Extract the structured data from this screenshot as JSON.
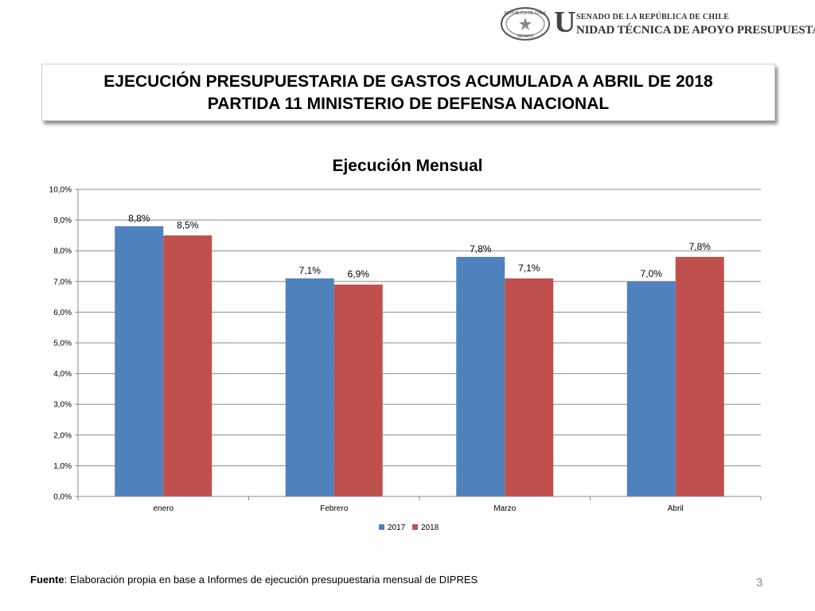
{
  "header": {
    "seal_text_top": "REPÚBLICA DE CHILE",
    "seal_text_bottom": "SENADO",
    "big_letter": "U",
    "senado_line": "SENADO DE LA REPÚBLICA DE CHILE",
    "unidad_line": "NIDAD TÉCNICA DE APOYO PRESUPUESTARIO"
  },
  "slide_title": {
    "line1": "EJECUCIÓN PRESUPUESTARIA DE GASTOS ACUMULADA A ABRIL DE 2018",
    "line2": "PARTIDA 11 MINISTERIO DE DEFENSA NACIONAL"
  },
  "chart_data": {
    "type": "bar",
    "title": "Ejecución Mensual",
    "categories": [
      "enero",
      "Febrero",
      "Marzo",
      "Abril"
    ],
    "series": [
      {
        "name": "2017",
        "values": [
          8.8,
          7.1,
          7.8,
          7.0
        ],
        "labels": [
          "8,8%",
          "7,1%",
          "7,8%",
          "7,0%"
        ],
        "color": "#4F81BD"
      },
      {
        "name": "2018",
        "values": [
          8.5,
          6.9,
          7.1,
          7.8
        ],
        "labels": [
          "8,5%",
          "6,9%",
          "7,1%",
          "7,8%"
        ],
        "color": "#C0504D"
      }
    ],
    "ylim": [
      0,
      10
    ],
    "yticks": [
      0,
      1,
      2,
      3,
      4,
      5,
      6,
      7,
      8,
      9,
      10
    ],
    "ytick_labels": [
      "0,0%",
      "1,0%",
      "2,0%",
      "3,0%",
      "4,0%",
      "5,0%",
      "6,0%",
      "7,0%",
      "8,0%",
      "9,0%",
      "10,0%"
    ],
    "grid": true,
    "legend_position": "bottom"
  },
  "footer": {
    "source_label": "Fuente",
    "source_text": ": Elaboración propia en base  a Informes de ejecución presupuestaria mensual de DIPRES",
    "page_number": "3"
  }
}
